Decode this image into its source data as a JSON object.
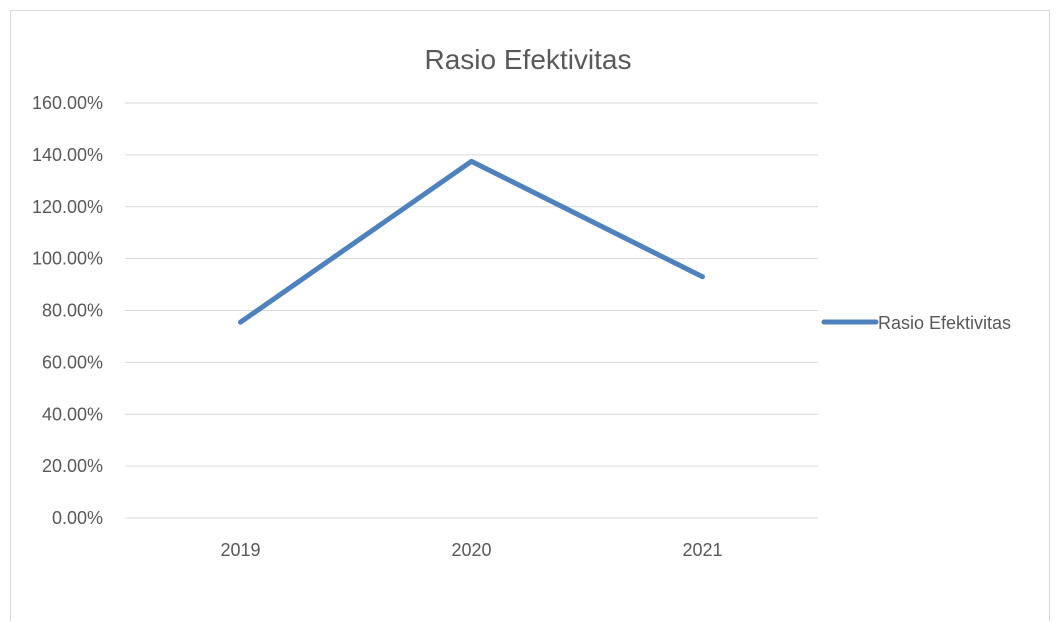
{
  "chart_data": {
    "type": "line",
    "title": "Rasio Efektivitas",
    "xlabel": "",
    "ylabel": "",
    "categories": [
      "2019",
      "2020",
      "2021"
    ],
    "series": [
      {
        "name": "Rasio Efektivitas",
        "values": [
          0.755,
          1.375,
          0.93
        ],
        "color": "#4f81bd"
      }
    ],
    "ylim": [
      0,
      1.6
    ],
    "yticks": [
      0,
      0.2,
      0.4,
      0.6,
      0.8,
      1.0,
      1.2,
      1.4,
      1.6
    ],
    "ytick_labels": [
      "0.00%",
      "20.00%",
      "40.00%",
      "60.00%",
      "80.00%",
      "100.00%",
      "120.00%",
      "140.00%",
      "160.00%"
    ],
    "grid": true,
    "legend_position": "right"
  }
}
